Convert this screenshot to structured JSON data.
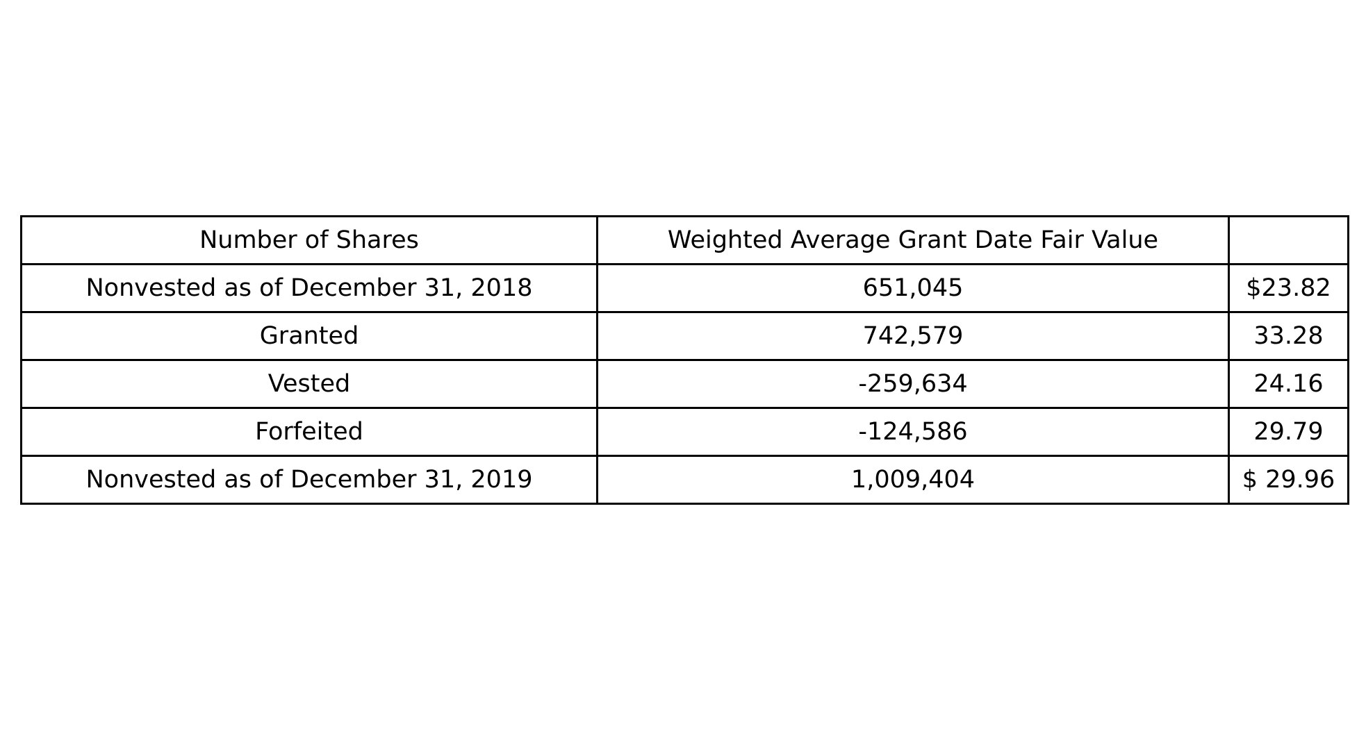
{
  "table": {
    "headers": [
      "Number of Shares",
      "Weighted Average Grant Date Fair Value",
      ""
    ],
    "rows": [
      [
        "Nonvested as of December 31, 2018",
        "651,045",
        "$23.82"
      ],
      [
        "Granted",
        "742,579",
        "33.28"
      ],
      [
        "Vested",
        "-259,634",
        "24.16"
      ],
      [
        "Forfeited",
        "-124,586",
        "29.79"
      ],
      [
        "Nonvested as of December 31, 2019",
        "1,009,404",
        "$ 29.96"
      ]
    ]
  }
}
